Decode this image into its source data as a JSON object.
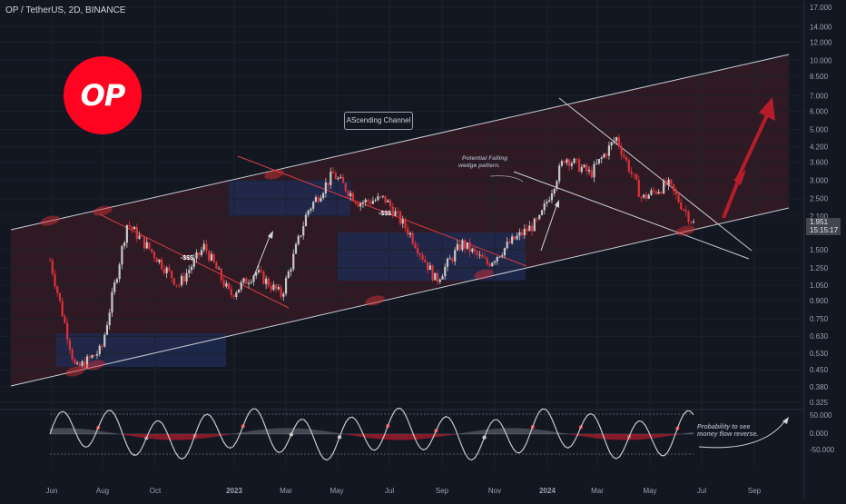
{
  "header": {
    "symbol_line": "OP / TetherUS, 2D, BINANCE"
  },
  "logo": {
    "text": "OP"
  },
  "current_price": {
    "price": "1.951",
    "countdown": "15:15:17"
  },
  "annotations": {
    "channel_label": "AScending Channel",
    "wedge_label_1": "Potential Falling",
    "wedge_label_2": "wedge pattern.",
    "dollar_marks": [
      "-$$$",
      "-$$$"
    ],
    "money_flow_1": "Probability to see",
    "money_flow_2": "money flow reverse."
  },
  "colors": {
    "background": "#131722",
    "bull": "#c8c8c8",
    "bear": "#e0303a",
    "channel_fill": "#3a1c26",
    "box_fill": "#1e2a52"
  },
  "chart_data": {
    "type": "candlestick",
    "title": "OP / TetherUS, 2D, BINANCE",
    "y_scale": "log",
    "y_ticks": [
      "17.000",
      "14.000",
      "12.000",
      "10.000",
      "8.500",
      "7.000",
      "6.000",
      "5.000",
      "4.200",
      "3.600",
      "3.000",
      "2.500",
      "2.100",
      "1.500",
      "1.250",
      "1.050",
      "0.900",
      "0.750",
      "0.630",
      "0.530",
      "0.450",
      "0.380",
      "0.325"
    ],
    "x_ticks": [
      "Jun",
      "Aug",
      "Oct",
      "2023",
      "Mar",
      "May",
      "Jul",
      "Sep",
      "Nov",
      "2024",
      "Mar",
      "May",
      "Jul",
      "Sep"
    ],
    "oscillator_ticks": [
      "50.000",
      "0.000",
      "-50.000"
    ],
    "price_path": [
      [
        "Jun 2022",
        1.35
      ],
      [
        "mid Jun 2022",
        0.45
      ],
      [
        "early Jul 2022",
        0.55
      ],
      [
        "late Jul 2022",
        1.95
      ],
      [
        "Aug 2022",
        1.45
      ],
      [
        "Sep 2022",
        1.05
      ],
      [
        "early Oct 2022",
        1.55
      ],
      [
        "late Oct 2022",
        0.95
      ],
      [
        "Nov 2022",
        1.2
      ],
      [
        "Dec 2022",
        0.95
      ],
      [
        "Jan 2023",
        2.2
      ],
      [
        "Feb 2023",
        3.2
      ],
      [
        "Mar 2023",
        2.4
      ],
      [
        "Apr 2023",
        2.5
      ],
      [
        "May 2023",
        1.75
      ],
      [
        "Jun 2023",
        1.1
      ],
      [
        "Jul 2023",
        1.6
      ],
      [
        "Sep 2023",
        1.3
      ],
      [
        "Oct 2023",
        1.65
      ],
      [
        "Nov 2023",
        2.0
      ],
      [
        "Dec 2023",
        3.8
      ],
      [
        "Jan 2024",
        3.2
      ],
      [
        "Mar 2024",
        4.6
      ],
      [
        "Apr 2024",
        2.5
      ],
      [
        "May 2024",
        2.9
      ],
      [
        "Jun 2024",
        1.95
      ]
    ]
  }
}
